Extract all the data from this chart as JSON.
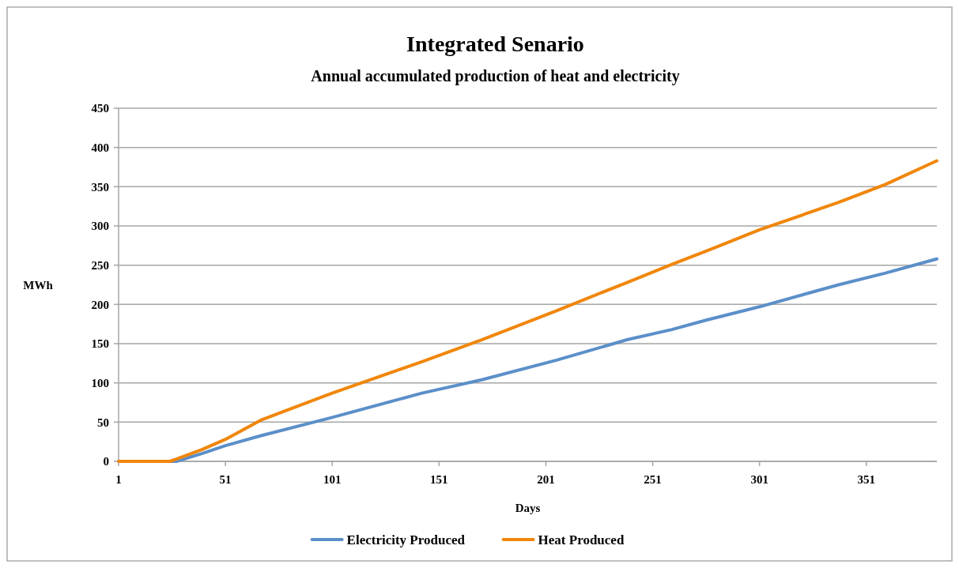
{
  "chart_data": {
    "type": "line",
    "title": "Integrated Senario",
    "subtitle": "Annual accumulated production of  heat and electricity",
    "xlabel": "Days",
    "ylabel": "MWh",
    "x": [
      1,
      25,
      28,
      40,
      51,
      68,
      101,
      143,
      171,
      206,
      239,
      260,
      276,
      301,
      338,
      360,
      384
    ],
    "series": [
      {
        "name": "Electricity Produced",
        "color": "#5b8fc9",
        "values": [
          0,
          0,
          0,
          10,
          20,
          33,
          56,
          87,
          104,
          129,
          155,
          168,
          180,
          197,
          225,
          240,
          258
        ]
      },
      {
        "name": "Heat Produced",
        "color": "#f0860a",
        "values": [
          0,
          0,
          3,
          15,
          28,
          53,
          87,
          127,
          155,
          192,
          228,
          251,
          268,
          295,
          330,
          353,
          383
        ]
      }
    ],
    "xlim": [
      1,
      384
    ],
    "xticks": [
      1,
      51,
      101,
      151,
      201,
      251,
      301,
      351
    ],
    "ylim": [
      0,
      450
    ],
    "yticks": [
      0,
      50,
      100,
      150,
      200,
      250,
      300,
      350,
      400,
      450
    ],
    "grid": "y",
    "legend": "bottom",
    "marker": "none",
    "line_style": "solid"
  }
}
